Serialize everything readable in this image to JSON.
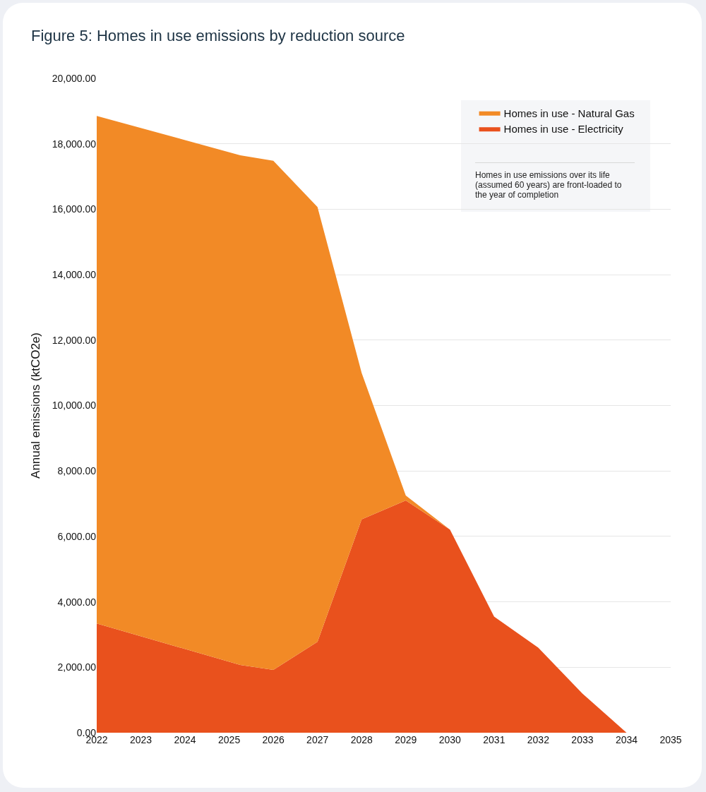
{
  "chart_data": {
    "type": "area",
    "title": "Figure 5: Homes in use emissions by reduction source",
    "ylabel": "Annual emissions (ktCO2e)",
    "x": [
      2022,
      2025.25,
      2026,
      2027,
      2028,
      2029,
      2030,
      2031,
      2032,
      2033,
      2034
    ],
    "stacked": true,
    "series": [
      {
        "name": "Homes in use - Electricity",
        "color": "#e9511d",
        "values": [
          3340,
          2070,
          1920,
          2780,
          6520,
          7100,
          6210,
          3550,
          2600,
          1200,
          0
        ]
      },
      {
        "name": "Homes in use - Natural Gas",
        "color": "#f28a26",
        "values": [
          15510,
          15580,
          15560,
          13290,
          4480,
          150,
          0,
          0,
          0,
          0,
          0
        ]
      }
    ],
    "xlim": [
      2022,
      2035
    ],
    "xticks": [
      2022,
      2023,
      2024,
      2025,
      2026,
      2027,
      2028,
      2029,
      2030,
      2031,
      2032,
      2033,
      2034,
      2035
    ],
    "ylim": [
      0,
      20000
    ],
    "yticks": [
      {
        "value": 0,
        "label": "0.00"
      },
      {
        "value": 2000,
        "label": "2,000.00"
      },
      {
        "value": 4000,
        "label": "4,000.00"
      },
      {
        "value": 6000,
        "label": "6,000.00"
      },
      {
        "value": 8000,
        "label": "8,000.00"
      },
      {
        "value": 10000,
        "label": "10,000.00"
      },
      {
        "value": 12000,
        "label": "12,000.00"
      },
      {
        "value": 14000,
        "label": "14,000.00"
      },
      {
        "value": 16000,
        "label": "16,000.00"
      },
      {
        "value": 18000,
        "label": "18,000.00"
      },
      {
        "value": 20000,
        "label": "20,000.00"
      }
    ],
    "grid": "y",
    "legend": "top right",
    "annotations": [
      "Homes in use emissions over its life (assumed 60 years) are front-loaded to the year of completion"
    ]
  }
}
